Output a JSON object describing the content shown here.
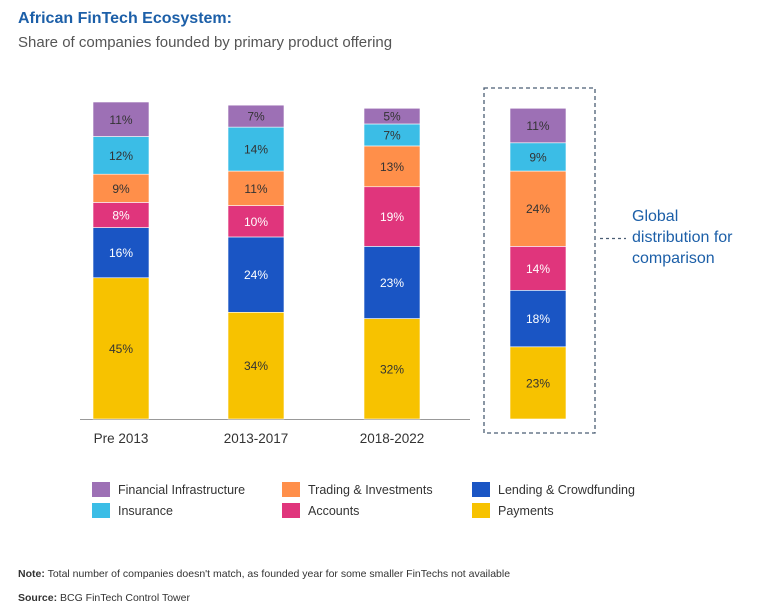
{
  "header": {
    "title": "African FinTech Ecosystem:",
    "subtitle": "Share of companies founded by primary product offering"
  },
  "annotation": {
    "lines": [
      "Global",
      "distribution for",
      "comparison"
    ]
  },
  "footer": {
    "note_label": "Note:",
    "note_text": " Total number of companies doesn't match, as founded year for some smaller FinTechs not available",
    "source_label": "Source:",
    "source_text": " BCG FinTech Control Tower"
  },
  "colors": {
    "Payments": "#f7c200",
    "Lending & Crowdfunding": "#1a55c4",
    "Accounts": "#e0357c",
    "Trading & Investments": "#ff8f4a",
    "Insurance": "#3bbde6",
    "Financial Infrastructure": "#9d70b5"
  },
  "legend": [
    "Financial Infrastructure",
    "Trading & Investments",
    "Lending & Crowdfunding",
    "Insurance",
    "Accounts",
    "Payments"
  ],
  "chart_data": {
    "type": "bar",
    "stacked": true,
    "title": "African FinTech Ecosystem:",
    "subtitle": "Share of companies founded by primary product offering",
    "categories": [
      "Pre 2013",
      "2013-2017",
      "2018-2022",
      ""
    ],
    "series": [
      {
        "name": "Payments",
        "values": [
          45,
          34,
          32,
          23
        ]
      },
      {
        "name": "Lending & Crowdfunding",
        "values": [
          16,
          24,
          23,
          18
        ]
      },
      {
        "name": "Accounts",
        "values": [
          8,
          10,
          19,
          14
        ]
      },
      {
        "name": "Trading & Investments",
        "values": [
          9,
          11,
          13,
          24
        ]
      },
      {
        "name": "Insurance",
        "values": [
          12,
          14,
          7,
          9
        ]
      },
      {
        "name": "Financial Infrastructure",
        "values": [
          11,
          7,
          5,
          11
        ]
      }
    ],
    "value_suffix": "%",
    "legend_position": "bottom",
    "grid": false
  }
}
